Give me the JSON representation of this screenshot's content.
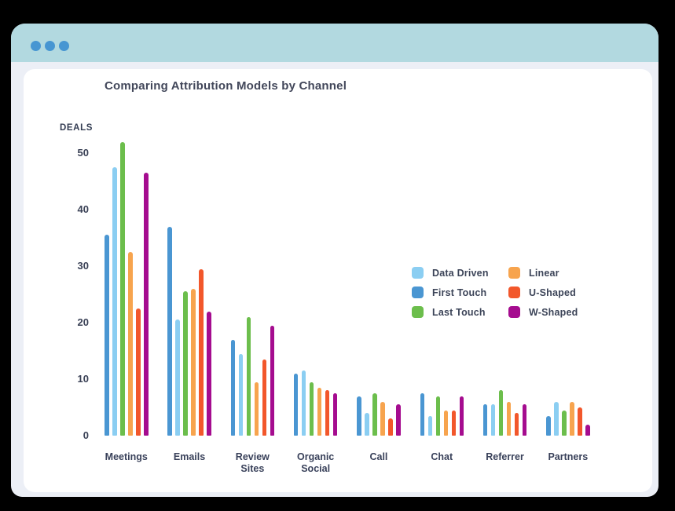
{
  "window": {
    "controls": {
      "dot_count": 3,
      "dot_color": "#4796D2"
    },
    "titlebar_color": "#B2D9E0",
    "frame_color": "#ECEFF6",
    "background_color": "#000000",
    "card_color": "#FFFFFF"
  },
  "chart_data": {
    "type": "bar",
    "title": "Comparing Attribution Models by Channel",
    "ylabel": "DEALS",
    "xlabel": "",
    "categories": [
      "Meetings",
      "Emails",
      "Review Sites",
      "Organic Social",
      "Call",
      "Chat",
      "Referrer",
      "Partners"
    ],
    "series": [
      {
        "name": "Data Driven",
        "color": "#8BCEF2",
        "values": [
          47.5,
          20.5,
          14.5,
          11.5,
          4,
          3.5,
          5.5,
          6
        ]
      },
      {
        "name": "First Touch",
        "color": "#4A96D2",
        "values": [
          35.5,
          37,
          17,
          11,
          7,
          7.5,
          5.5,
          3.5
        ]
      },
      {
        "name": "Last Touch",
        "color": "#6CBE4C",
        "values": [
          52,
          25.5,
          21,
          9.5,
          7.5,
          7,
          8,
          4.5
        ]
      },
      {
        "name": "Linear",
        "color": "#F7A44E",
        "values": [
          32.5,
          26,
          9.5,
          8.5,
          6,
          4.5,
          6,
          6
        ]
      },
      {
        "name": "U-Shaped",
        "color": "#F2572B",
        "values": [
          22.5,
          29.5,
          13.5,
          8,
          3,
          4.5,
          4,
          5
        ]
      },
      {
        "name": "W-Shaped",
        "color": "#A50C8F",
        "values": [
          46.5,
          22,
          19.5,
          7.5,
          5.5,
          7,
          5.5,
          2
        ]
      }
    ],
    "draw_order": [
      "First Touch",
      "Data Driven",
      "Last Touch",
      "Linear",
      "U-Shaped",
      "W-Shaped"
    ],
    "y_ticks": [
      0,
      10,
      20,
      30,
      40,
      50
    ],
    "ylim": [
      0,
      55
    ],
    "grid": false,
    "legend_position": "center-right",
    "axis_text_color": "#3A4156"
  }
}
